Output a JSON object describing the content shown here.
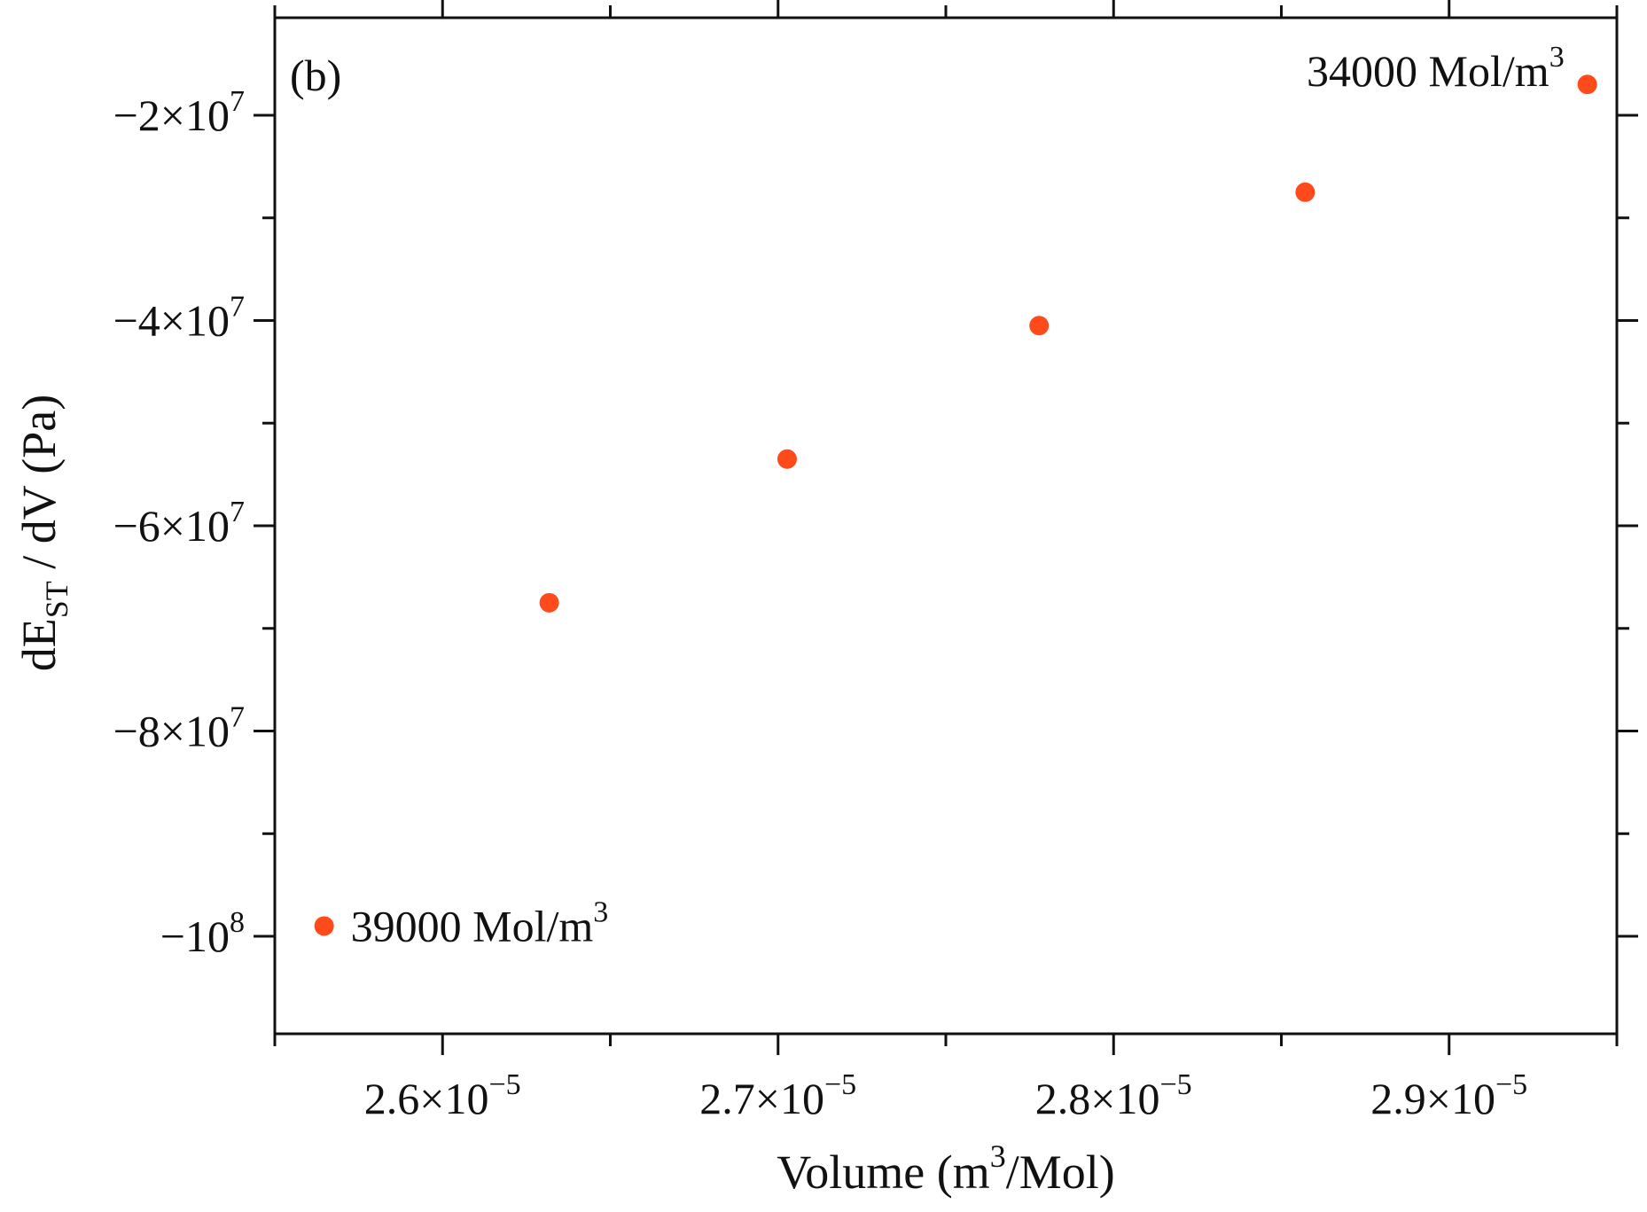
{
  "chart_data": {
    "type": "scatter",
    "panel_label": "(b)",
    "x": [
      2.5647e-05,
      2.6318e-05,
      2.7027e-05,
      2.7778e-05,
      2.8571e-05,
      2.9412e-05
    ],
    "y": [
      -99000000,
      -67500000,
      -53500000,
      -40500000,
      -27500000,
      -17000000
    ],
    "marker_color": "#ff4a1c",
    "xlabel": {
      "prefix": "Volume (m",
      "sup": "3",
      "suffix": "/Mol)"
    },
    "ylabel": {
      "prefix": "dE",
      "sub": "ST",
      "suffix": " / dV (Pa)"
    },
    "xlim": [
      2.55e-05,
      2.95e-05
    ],
    "ylim": [
      -109500000,
      -10500000
    ],
    "grid": false,
    "x_ticks": [
      {
        "value": 2.6e-05,
        "mantissa": "2.6",
        "exp": "−5"
      },
      {
        "value": 2.7e-05,
        "mantissa": "2.7",
        "exp": "−5"
      },
      {
        "value": 2.8e-05,
        "mantissa": "2.8",
        "exp": "−5"
      },
      {
        "value": 2.9e-05,
        "mantissa": "2.9",
        "exp": "−5"
      }
    ],
    "x_minor_ticks": [
      2.55e-05,
      2.65e-05,
      2.75e-05,
      2.85e-05,
      2.95e-05
    ],
    "y_ticks": [
      {
        "value": -20000000,
        "mantissa": "−2",
        "exp": "7"
      },
      {
        "value": -40000000,
        "mantissa": "−4",
        "exp": "7"
      },
      {
        "value": -60000000,
        "mantissa": "−6",
        "exp": "7"
      },
      {
        "value": -80000000,
        "mantissa": "−8",
        "exp": "7"
      },
      {
        "value": -100000000,
        "mantissa": "−10",
        "exp": "8",
        "no_times": true
      }
    ],
    "y_minor_ticks": [
      -30000000,
      -50000000,
      -70000000,
      -90000000
    ],
    "annotations": [
      {
        "text": "34000 Mol/m",
        "sup": "3",
        "point_index": 5,
        "side": "left"
      },
      {
        "text": "39000 Mol/m",
        "sup": "3",
        "point_index": 0,
        "side": "right"
      }
    ]
  }
}
